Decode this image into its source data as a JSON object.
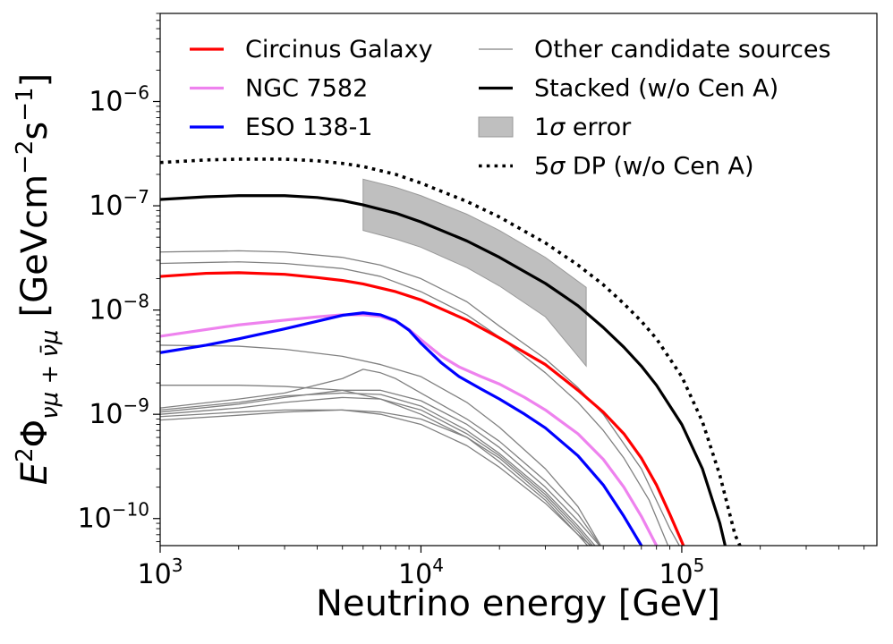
{
  "chart_data": {
    "type": "line",
    "x_scale": "log",
    "y_scale": "log",
    "xlabel": "Neutrino energy [GeV]",
    "ylabel_prefix": "E",
    "ylabel_sup": "2",
    "ylabel_phi": "Φ",
    "ylabel_sub": "νμ + ν̄μ",
    "ylabel_units": "[GeVcm",
    "ylabel_units_sup1": "−2",
    "ylabel_units_mid": "s",
    "ylabel_units_sup2": "−1",
    "ylabel_units_end": "]",
    "xlim": [
      1000,
      560000
    ],
    "ylim": [
      5.5e-11,
      7e-06
    ],
    "x_ticks": [
      {
        "value": 1000,
        "base": "10",
        "exp": "3"
      },
      {
        "value": 10000,
        "base": "10",
        "exp": "4"
      },
      {
        "value": 100000,
        "base": "10",
        "exp": "5"
      }
    ],
    "y_ticks": [
      {
        "value": 1e-10,
        "base": "10",
        "exp": "−10"
      },
      {
        "value": 1e-09,
        "base": "10",
        "exp": "−9"
      },
      {
        "value": 1e-08,
        "base": "10",
        "exp": "−8"
      },
      {
        "value": 1e-07,
        "base": "10",
        "exp": "−7"
      },
      {
        "value": 1e-06,
        "base": "10",
        "exp": "−6"
      }
    ],
    "legend": {
      "placement": "upper",
      "columns": [
        [
          {
            "key": "circinus",
            "label": "Circinus Galaxy",
            "kind": "line",
            "color": "#ff0000"
          },
          {
            "key": "ngc7582",
            "label": "NGC 7582",
            "kind": "line",
            "color": "#ee82ee"
          },
          {
            "key": "eso138",
            "label": "ESO 138-1",
            "kind": "line",
            "color": "#0000ff"
          }
        ],
        [
          {
            "key": "others",
            "label": "Other candidate sources",
            "kind": "thin",
            "color": "#808080"
          },
          {
            "key": "stacked",
            "label": "Stacked (w/o Cen A)",
            "kind": "line",
            "color": "#000000"
          },
          {
            "key": "band",
            "label_sym": "1σ",
            "label_rest": " error",
            "kind": "patch",
            "color": "#bfbfbf"
          },
          {
            "key": "dp",
            "label_sym": "5σ",
            "label_rest": " DP (w/o Cen A)",
            "kind": "dotted",
            "color": "#000000"
          }
        ]
      ]
    },
    "series": [
      {
        "name": "Circinus Galaxy",
        "color": "#ff0000",
        "width": 3.2,
        "style": "solid",
        "points": [
          [
            1000,
            2.1e-08
          ],
          [
            1500,
            2.25e-08
          ],
          [
            2000,
            2.28e-08
          ],
          [
            3000,
            2.2e-08
          ],
          [
            4000,
            2.05e-08
          ],
          [
            5000,
            1.92e-08
          ],
          [
            6000,
            1.78e-08
          ],
          [
            8000,
            1.5e-08
          ],
          [
            10000,
            1.25e-08
          ],
          [
            15000,
            8e-09
          ],
          [
            20000,
            5.4e-09
          ],
          [
            30000,
            3e-09
          ],
          [
            40000,
            1.7e-09
          ],
          [
            50000,
            1.05e-09
          ],
          [
            60000,
            6.5e-10
          ],
          [
            70000,
            3.8e-10
          ],
          [
            80000,
            2.1e-10
          ],
          [
            90000,
            1.1e-10
          ],
          [
            100000,
            6e-11
          ],
          [
            103000,
            5e-11
          ]
        ]
      },
      {
        "name": "NGC 7582",
        "color": "#ee82ee",
        "width": 3.2,
        "style": "solid",
        "points": [
          [
            1000,
            5.6e-09
          ],
          [
            1500,
            6.5e-09
          ],
          [
            2000,
            7.2e-09
          ],
          [
            3000,
            8e-09
          ],
          [
            4000,
            8.6e-09
          ],
          [
            5000,
            9e-09
          ],
          [
            6000,
            9e-09
          ],
          [
            7000,
            8.7e-09
          ],
          [
            8000,
            7.8e-09
          ],
          [
            9000,
            6.5e-09
          ],
          [
            10000,
            5.2e-09
          ],
          [
            12000,
            3.6e-09
          ],
          [
            14000,
            2.85e-09
          ],
          [
            17000,
            2.3e-09
          ],
          [
            20000,
            1.95e-09
          ],
          [
            25000,
            1.45e-09
          ],
          [
            30000,
            1.1e-09
          ],
          [
            40000,
            6.5e-10
          ],
          [
            50000,
            3.7e-10
          ],
          [
            60000,
            2e-10
          ],
          [
            70000,
            1.05e-10
          ],
          [
            80000,
            5.5e-11
          ],
          [
            82000,
            5e-11
          ]
        ]
      },
      {
        "name": "ESO 138-1",
        "color": "#0000ff",
        "width": 3.2,
        "style": "solid",
        "points": [
          [
            1000,
            3.9e-09
          ],
          [
            1500,
            4.6e-09
          ],
          [
            2000,
            5.3e-09
          ],
          [
            3000,
            6.6e-09
          ],
          [
            4000,
            7.8e-09
          ],
          [
            5000,
            8.9e-09
          ],
          [
            6000,
            9.4e-09
          ],
          [
            7000,
            9e-09
          ],
          [
            8000,
            7.9e-09
          ],
          [
            9000,
            6.4e-09
          ],
          [
            10000,
            4.8e-09
          ],
          [
            12000,
            3.1e-09
          ],
          [
            14000,
            2.3e-09
          ],
          [
            17000,
            1.75e-09
          ],
          [
            20000,
            1.4e-09
          ],
          [
            25000,
            1e-09
          ],
          [
            30000,
            7.4e-10
          ],
          [
            40000,
            4e-10
          ],
          [
            50000,
            2.1e-10
          ],
          [
            60000,
            1.05e-10
          ],
          [
            70000,
            5.5e-11
          ],
          [
            72000,
            5e-11
          ]
        ]
      },
      {
        "name": "Stacked (w/o Cen A)",
        "color": "#000000",
        "width": 3.2,
        "style": "solid",
        "points": [
          [
            1000,
            1.15e-07
          ],
          [
            1500,
            1.22e-07
          ],
          [
            2000,
            1.25e-07
          ],
          [
            3000,
            1.25e-07
          ],
          [
            4000,
            1.2e-07
          ],
          [
            5000,
            1.12e-07
          ],
          [
            6000,
            1.02e-07
          ],
          [
            8000,
            8.5e-08
          ],
          [
            10000,
            7e-08
          ],
          [
            15000,
            4.6e-08
          ],
          [
            20000,
            3.2e-08
          ],
          [
            30000,
            1.8e-08
          ],
          [
            40000,
            1.1e-08
          ],
          [
            50000,
            6.8e-09
          ],
          [
            60000,
            4.4e-09
          ],
          [
            70000,
            2.9e-09
          ],
          [
            80000,
            1.9e-09
          ],
          [
            100000,
            8e-10
          ],
          [
            120000,
            3e-10
          ],
          [
            140000,
            9e-11
          ],
          [
            148000,
            5e-11
          ]
        ]
      },
      {
        "name": "5σ DP (w/o Cen A)",
        "color": "#000000",
        "width": 3.6,
        "style": "dotted",
        "points": [
          [
            1000,
            2.6e-07
          ],
          [
            1500,
            2.75e-07
          ],
          [
            2000,
            2.8e-07
          ],
          [
            3000,
            2.8e-07
          ],
          [
            4000,
            2.7e-07
          ],
          [
            5000,
            2.55e-07
          ],
          [
            6000,
            2.38e-07
          ],
          [
            8000,
            2e-07
          ],
          [
            10000,
            1.65e-07
          ],
          [
            15000,
            1.1e-07
          ],
          [
            20000,
            7.8e-08
          ],
          [
            30000,
            4.4e-08
          ],
          [
            40000,
            2.7e-08
          ],
          [
            50000,
            1.75e-08
          ],
          [
            60000,
            1.15e-08
          ],
          [
            70000,
            7.8e-09
          ],
          [
            80000,
            5.3e-09
          ],
          [
            100000,
            2.3e-09
          ],
          [
            120000,
            8.5e-10
          ],
          [
            140000,
            2.6e-10
          ],
          [
            160000,
            7e-11
          ],
          [
            170000,
            5e-11
          ]
        ]
      }
    ],
    "other_sources": {
      "name": "Other candidate sources",
      "color": "#808080",
      "width": 1.3,
      "curves": [
        [
          [
            1000,
            3.6e-08
          ],
          [
            2000,
            3.7e-08
          ],
          [
            3000,
            3.6e-08
          ],
          [
            5000,
            3.2e-08
          ],
          [
            7000,
            2.7e-08
          ],
          [
            10000,
            2e-08
          ],
          [
            15000,
            1.2e-08
          ],
          [
            20000,
            7e-09
          ],
          [
            30000,
            3.4e-09
          ],
          [
            40000,
            1.8e-09
          ],
          [
            50000,
            1e-09
          ],
          [
            70000,
            3e-10
          ],
          [
            90000,
            8e-11
          ],
          [
            100000,
            5e-11
          ]
        ],
        [
          [
            1000,
            2.8e-08
          ],
          [
            2000,
            2.9e-08
          ],
          [
            3000,
            2.8e-08
          ],
          [
            5000,
            2.5e-08
          ],
          [
            7000,
            2.1e-08
          ],
          [
            10000,
            1.5e-08
          ],
          [
            15000,
            9e-09
          ],
          [
            20000,
            5.5e-09
          ],
          [
            30000,
            2.5e-09
          ],
          [
            40000,
            1.3e-09
          ],
          [
            50000,
            7e-10
          ],
          [
            60000,
            3.8e-10
          ],
          [
            75000,
            1.5e-10
          ],
          [
            90000,
            5e-11
          ]
        ],
        [
          [
            1000,
            4.6e-09
          ],
          [
            2000,
            4.5e-09
          ],
          [
            3000,
            4.2e-09
          ],
          [
            5000,
            3.6e-09
          ],
          [
            7000,
            3e-09
          ],
          [
            10000,
            2.3e-09
          ],
          [
            15000,
            1.3e-09
          ],
          [
            20000,
            7.5e-10
          ],
          [
            30000,
            3e-10
          ],
          [
            40000,
            1.3e-10
          ],
          [
            50000,
            5e-11
          ]
        ],
        [
          [
            1000,
            1.9e-09
          ],
          [
            2000,
            1.9e-09
          ],
          [
            3000,
            1.85e-09
          ],
          [
            5000,
            1.7e-09
          ],
          [
            7000,
            1.4e-09
          ],
          [
            10000,
            1e-09
          ],
          [
            15000,
            6e-10
          ],
          [
            20000,
            3.5e-10
          ],
          [
            30000,
            1.5e-10
          ],
          [
            40000,
            7e-11
          ],
          [
            47000,
            5e-11
          ]
        ],
        [
          [
            1000,
            1.15e-09
          ],
          [
            2000,
            1.4e-09
          ],
          [
            3000,
            1.6e-09
          ],
          [
            5000,
            2.2e-09
          ],
          [
            6000,
            2.7e-09
          ],
          [
            7000,
            2.5e-09
          ],
          [
            8000,
            2.2e-09
          ],
          [
            10000,
            1.6e-09
          ],
          [
            15000,
            9e-10
          ],
          [
            20000,
            5.5e-10
          ],
          [
            30000,
            2.3e-10
          ],
          [
            40000,
            1.1e-10
          ],
          [
            50000,
            5e-11
          ]
        ],
        [
          [
            1000,
            1.05e-09
          ],
          [
            2000,
            1.25e-09
          ],
          [
            3000,
            1.45e-09
          ],
          [
            5000,
            1.7e-09
          ],
          [
            7000,
            1.7e-09
          ],
          [
            10000,
            1.35e-09
          ],
          [
            15000,
            8e-10
          ],
          [
            20000,
            4.8e-10
          ],
          [
            30000,
            2e-10
          ],
          [
            40000,
            9.5e-11
          ],
          [
            50000,
            5e-11
          ]
        ],
        [
          [
            1000,
            1e-09
          ],
          [
            2000,
            1.15e-09
          ],
          [
            3000,
            1.3e-09
          ],
          [
            5000,
            1.45e-09
          ],
          [
            7000,
            1.4e-09
          ],
          [
            10000,
            1.1e-09
          ],
          [
            15000,
            6.5e-10
          ],
          [
            20000,
            4e-10
          ],
          [
            30000,
            1.7e-10
          ],
          [
            40000,
            8e-11
          ],
          [
            47000,
            5e-11
          ]
        ],
        [
          [
            1000,
            9.5e-10
          ],
          [
            2000,
            1.05e-09
          ],
          [
            3000,
            1.1e-09
          ],
          [
            5000,
            1.1e-09
          ],
          [
            7000,
            1e-09
          ],
          [
            10000,
            8e-10
          ],
          [
            15000,
            5e-10
          ],
          [
            20000,
            3.1e-10
          ],
          [
            30000,
            1.4e-10
          ],
          [
            40000,
            7e-11
          ],
          [
            45000,
            5e-11
          ]
        ],
        [
          [
            1000,
            8.8e-10
          ],
          [
            2000,
            9.8e-10
          ],
          [
            3000,
            1.05e-09
          ],
          [
            5000,
            1.1e-09
          ],
          [
            7000,
            1.05e-09
          ],
          [
            10000,
            9e-10
          ],
          [
            15000,
            6e-10
          ],
          [
            20000,
            3.8e-10
          ],
          [
            30000,
            1.6e-10
          ],
          [
            40000,
            7.5e-11
          ],
          [
            46000,
            5e-11
          ]
        ],
        [
          [
            1000,
            1.1e-09
          ],
          [
            2000,
            1.3e-09
          ],
          [
            3000,
            1.5e-09
          ],
          [
            5000,
            1.6e-09
          ],
          [
            7000,
            1.55e-09
          ],
          [
            10000,
            1.2e-09
          ],
          [
            15000,
            7e-10
          ],
          [
            20000,
            4.2e-10
          ],
          [
            30000,
            1.8e-10
          ],
          [
            40000,
            8.5e-11
          ],
          [
            48000,
            5e-11
          ]
        ]
      ]
    },
    "band": {
      "name": "1σ error",
      "color": "#bfbfbf",
      "edge": "#999999",
      "x": [
        6000,
        8000,
        10000,
        15000,
        20000,
        30000,
        43000
      ],
      "upper": [
        1.8e-07,
        1.5e-07,
        1.25e-07,
        8.3e-08,
        5.8e-08,
        3.2e-08,
        1.65e-08
      ],
      "lower": [
        5.8e-08,
        4.8e-08,
        4e-08,
        2.55e-08,
        1.7e-08,
        8.6e-09,
        2.9e-09
      ]
    }
  }
}
